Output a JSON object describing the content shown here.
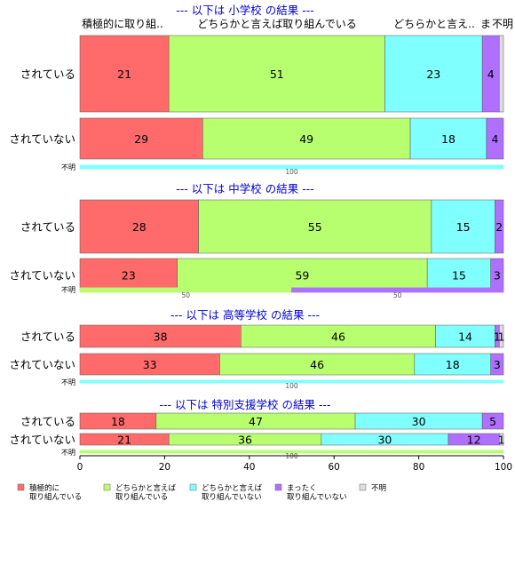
{
  "chart_data": {
    "type": "bar",
    "orientation": "horizontal",
    "stacked": "percent",
    "column_headers": [
      "積極的に取り組..",
      "どちらかと言えば取り組んでいる",
      "どちらかと言え..",
      "ま",
      "不明"
    ],
    "xlim": [
      0,
      100
    ],
    "x_ticks": [
      "0",
      "20",
      "40",
      "60",
      "80",
      "100"
    ],
    "legend_position": "bottom",
    "legend": [
      {
        "label": "積極的に\n取り組んでいる",
        "color": "#FF6B6B"
      },
      {
        "label": "どちらかと言えば\n取り組んでいる",
        "color": "#B8FF70"
      },
      {
        "label": "どちらかと言えば\n取り組んでいない",
        "color": "#80FFFF"
      },
      {
        "label": "まったく\n取り組んでいない",
        "color": "#B070FF"
      },
      {
        "label": "不明",
        "color": "#DDDDDD"
      }
    ],
    "panels": [
      {
        "title": "--- 以下は 小学校 の結果 ---",
        "rows": [
          {
            "label": "されている",
            "values": [
              21,
              51,
              23,
              4,
              1
            ],
            "labels": [
              "21",
              "51",
              "23",
              "4",
              ""
            ]
          },
          {
            "label": "されていない",
            "values": [
              29,
              49,
              18,
              4,
              0
            ],
            "labels": [
              "29",
              "49",
              "18",
              "4",
              ""
            ]
          },
          {
            "label": "不明",
            "values": [
              0,
              0,
              100,
              0,
              0
            ],
            "labels": [
              "",
              "",
              "100",
              "",
              ""
            ]
          }
        ]
      },
      {
        "title": "--- 以下は 中学校 の結果 ---",
        "rows": [
          {
            "label": "されている",
            "values": [
              28,
              55,
              15,
              2,
              0
            ],
            "labels": [
              "28",
              "55",
              "15",
              "2",
              ""
            ]
          },
          {
            "label": "されていない",
            "values": [
              23,
              59,
              15,
              3,
              0
            ],
            "labels": [
              "23",
              "59",
              "15",
              "3",
              ""
            ]
          },
          {
            "label": "不明",
            "values": [
              0,
              50,
              0,
              50,
              0
            ],
            "labels": [
              "",
              "50",
              "",
              "50",
              ""
            ]
          }
        ]
      },
      {
        "title": "--- 以下は 高等学校 の結果 ---",
        "rows": [
          {
            "label": "されている",
            "values": [
              38,
              46,
              14,
              1,
              1
            ],
            "labels": [
              "38",
              "46",
              "14",
              "1",
              "1"
            ]
          },
          {
            "label": "されていない",
            "values": [
              33,
              46,
              18,
              3,
              0
            ],
            "labels": [
              "33",
              "46",
              "18",
              "3",
              ""
            ]
          },
          {
            "label": "不明",
            "values": [
              0,
              0,
              100,
              0,
              0
            ],
            "labels": [
              "",
              "",
              "100",
              "",
              ""
            ]
          }
        ]
      },
      {
        "title": "--- 以下は 特別支援学校 の結果 ---",
        "rows": [
          {
            "label": "されている",
            "values": [
              18,
              47,
              30,
              5,
              0
            ],
            "labels": [
              "18",
              "47",
              "30",
              "5",
              ""
            ]
          },
          {
            "label": "されていない",
            "values": [
              21,
              36,
              30,
              12,
              1
            ],
            "labels": [
              "21",
              "36",
              "30",
              "12",
              "1"
            ]
          },
          {
            "label": "不明",
            "values": [
              0,
              100,
              0,
              0,
              0
            ],
            "labels": [
              "",
              "100",
              "",
              "",
              ""
            ]
          }
        ]
      }
    ]
  }
}
